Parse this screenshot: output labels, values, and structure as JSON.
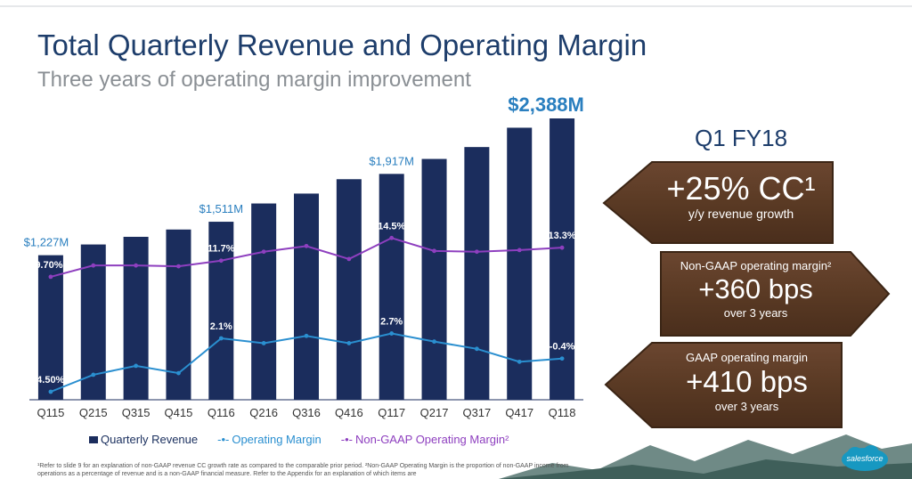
{
  "title": "Total Quarterly Revenue and Operating Margin",
  "subtitle": "Three years of operating margin improvement",
  "chart_data": {
    "type": "bar",
    "categories": [
      "Q115",
      "Q215",
      "Q315",
      "Q415",
      "Q116",
      "Q216",
      "Q316",
      "Q416",
      "Q117",
      "Q217",
      "Q317",
      "Q417",
      "Q118"
    ],
    "series": [
      {
        "name": "Quarterly Revenue",
        "type": "bar",
        "color": "#1b2d5d",
        "values": [
          1227,
          1318,
          1383,
          1445,
          1511,
          1666,
          1750,
          1872,
          1917,
          2044,
          2145,
          2309,
          2388
        ]
      },
      {
        "name": "Operating Margin",
        "type": "line",
        "color": "#2a8fd0",
        "values": [
          -4.5,
          -2.4,
          -1.3,
          -2.2,
          2.1,
          1.5,
          2.4,
          1.5,
          2.7,
          1.7,
          0.8,
          -0.8,
          -0.4
        ]
      },
      {
        "name": "Non-GAAP Operating Margin²",
        "type": "line",
        "color": "#8e3fbf",
        "values": [
          9.7,
          11.1,
          11.1,
          11.0,
          11.7,
          12.8,
          13.5,
          11.9,
          14.5,
          12.9,
          12.8,
          13.0,
          13.3
        ]
      }
    ],
    "revenue_labels": [
      {
        "index": 0,
        "text": "$1,227M"
      },
      {
        "index": 4,
        "text": "$1,511M"
      },
      {
        "index": 8,
        "text": "$1,917M"
      },
      {
        "index": 12,
        "text": "$2,388M"
      }
    ],
    "op_margin_labels": [
      {
        "index": 0,
        "text": "-4.50%"
      },
      {
        "index": 4,
        "text": "2.1%"
      },
      {
        "index": 8,
        "text": "2.7%"
      },
      {
        "index": 12,
        "text": "-0.4%"
      }
    ],
    "nongaap_labels": [
      {
        "index": 0,
        "text": "9.70%"
      },
      {
        "index": 4,
        "text": "11.7%"
      },
      {
        "index": 8,
        "text": "14.5%"
      },
      {
        "index": 12,
        "text": "13.3%"
      }
    ],
    "legend": [
      "Quarterly Revenue",
      "Operating Margin",
      "Non-GAAP Operating Margin²"
    ]
  },
  "side_panel": {
    "heading": "Q1 FY18",
    "signs": [
      {
        "big": "+25% CC¹",
        "small": "y/y revenue growth"
      },
      {
        "top": "Non-GAAP operating margin²",
        "big": "+360 bps",
        "small": "over 3 years"
      },
      {
        "top": "GAAP operating margin",
        "big": "+410 bps",
        "small": "over 3 years"
      }
    ]
  },
  "colors": {
    "title": "#1d3d6b",
    "bar": "#1b2d5d",
    "op": "#2a8fd0",
    "nongaap": "#8e3fbf",
    "wood": "#5a3a23"
  },
  "footnote": "¹Refer to slide 9 for an explanation of non-GAAP revenue CC growth rate as compared to the comparable prior period. ²Non-GAAP Operating Margin is the proportion of non-GAAP income from operations as a percentage of revenue and is a non-GAAP financial measure. Refer to the Appendix for an explanation of which items are",
  "logo": "salesforce"
}
